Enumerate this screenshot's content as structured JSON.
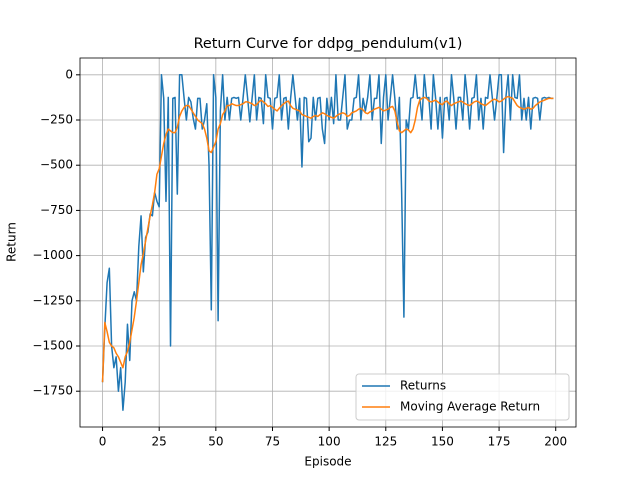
{
  "chart_data": {
    "type": "line",
    "title": "Return Curve for ddpg_pendulum(v1)",
    "xlabel": "Episode",
    "ylabel": "Return",
    "x": [
      0,
      1,
      2,
      3,
      4,
      5,
      6,
      7,
      8,
      9,
      10,
      11,
      12,
      13,
      14,
      15,
      16,
      17,
      18,
      19,
      20,
      21,
      22,
      23,
      24,
      25,
      26,
      27,
      28,
      29,
      30,
      31,
      32,
      33,
      34,
      35,
      36,
      37,
      38,
      39,
      40,
      41,
      42,
      43,
      44,
      45,
      46,
      47,
      48,
      49,
      50,
      51,
      52,
      53,
      54,
      55,
      56,
      57,
      58,
      59,
      60,
      61,
      62,
      63,
      64,
      65,
      66,
      67,
      68,
      69,
      70,
      71,
      72,
      73,
      74,
      75,
      76,
      77,
      78,
      79,
      80,
      81,
      82,
      83,
      84,
      85,
      86,
      87,
      88,
      89,
      90,
      91,
      92,
      93,
      94,
      95,
      96,
      97,
      98,
      99,
      100,
      101,
      102,
      103,
      104,
      105,
      106,
      107,
      108,
      109,
      110,
      111,
      112,
      113,
      114,
      115,
      116,
      117,
      118,
      119,
      120,
      121,
      122,
      123,
      124,
      125,
      126,
      127,
      128,
      129,
      130,
      131,
      132,
      133,
      134,
      135,
      136,
      137,
      138,
      139,
      140,
      141,
      142,
      143,
      144,
      145,
      146,
      147,
      148,
      149,
      150,
      151,
      152,
      153,
      154,
      155,
      156,
      157,
      158,
      159,
      160,
      161,
      162,
      163,
      164,
      165,
      166,
      167,
      168,
      169,
      170,
      171,
      172,
      173,
      174,
      175,
      176,
      177,
      178,
      179,
      180,
      181,
      182,
      183,
      184,
      185,
      186,
      187,
      188,
      189,
      190,
      191,
      192,
      193,
      194,
      195,
      196,
      197,
      198,
      199
    ],
    "series": [
      {
        "name": "Returns",
        "color": "#1f77b4",
        "values": [
          -1700,
          -1400,
          -1150,
          -1070,
          -1500,
          -1620,
          -1560,
          -1750,
          -1620,
          -1855,
          -1700,
          -1380,
          -1580,
          -1250,
          -1200,
          -1250,
          -950,
          -780,
          -1090,
          -900,
          -870,
          -770,
          -780,
          -650,
          -700,
          -730,
          0,
          -130,
          -700,
          -125,
          -1500,
          -130,
          -125,
          -660,
          0,
          0,
          -130,
          -250,
          -125,
          -150,
          -240,
          -300,
          -130,
          -130,
          -300,
          -250,
          -160,
          -500,
          -1300,
          0,
          -125,
          -1360,
          -200,
          0,
          -250,
          -125,
          -250,
          -130,
          -125,
          -130,
          -125,
          -250,
          -130,
          0,
          -125,
          -260,
          -130,
          0,
          -250,
          -125,
          -130,
          -270,
          0,
          -125,
          -130,
          -300,
          -130,
          -125,
          0,
          -250,
          -130,
          -125,
          -300,
          -130,
          0,
          -125,
          -250,
          -130,
          -510,
          -125,
          -130,
          -370,
          -350,
          -125,
          -250,
          -130,
          -125,
          -300,
          -380,
          -130,
          -250,
          -125,
          -270,
          0,
          -250,
          -250,
          -125,
          0,
          -300,
          -250,
          -250,
          -130,
          -125,
          0,
          -250,
          -130,
          -200,
          -125,
          0,
          -250,
          -130,
          -130,
          0,
          -380,
          -125,
          0,
          -250,
          -130,
          0,
          -130,
          -300,
          -125,
          -650,
          -1340,
          -250,
          -300,
          -130,
          -125,
          0,
          -130,
          -125,
          -250,
          0,
          -130,
          -125,
          -300,
          0,
          -130,
          -300,
          -125,
          -350,
          -130,
          -125,
          -250,
          0,
          -130,
          -300,
          -125,
          -125,
          -250,
          0,
          -125,
          -300,
          -130,
          -125,
          0,
          -250,
          -130,
          -300,
          -125,
          -130,
          0,
          -125,
          -250,
          -130,
          0,
          0,
          -430,
          -125,
          0,
          -250,
          0,
          -125,
          -130,
          0,
          -250,
          -130,
          -250,
          -125,
          -300,
          -130,
          -125,
          -130,
          -250,
          -130,
          -125,
          -130,
          -125,
          -130,
          -130
        ]
      },
      {
        "name": "Moving Average Return",
        "color": "#ff7f0e",
        "values": [
          -1700,
          -1370,
          -1420,
          -1480,
          -1500,
          -1510,
          -1540,
          -1560,
          -1590,
          -1620,
          -1560,
          -1530,
          -1480,
          -1410,
          -1340,
          -1250,
          -1150,
          -1050,
          -990,
          -920,
          -850,
          -780,
          -720,
          -650,
          -550,
          -520,
          -450,
          -380,
          -330,
          -300,
          -310,
          -320,
          -320,
          -290,
          -230,
          -200,
          -180,
          -170,
          -170,
          -190,
          -210,
          -230,
          -250,
          -260,
          -270,
          -300,
          -350,
          -420,
          -430,
          -400,
          -370,
          -300,
          -270,
          -220,
          -200,
          -170,
          -170,
          -160,
          -165,
          -170,
          -170,
          -165,
          -160,
          -150,
          -150,
          -155,
          -160,
          -170,
          -165,
          -150,
          -140,
          -150,
          -160,
          -175,
          -170,
          -180,
          -190,
          -200,
          -185,
          -170,
          -160,
          -150,
          -145,
          -170,
          -185,
          -190,
          -195,
          -200,
          -220,
          -225,
          -230,
          -235,
          -240,
          -230,
          -225,
          -230,
          -220,
          -210,
          -215,
          -225,
          -230,
          -235,
          -240,
          -230,
          -220,
          -215,
          -210,
          -215,
          -230,
          -225,
          -210,
          -205,
          -200,
          -190,
          -185,
          -195,
          -210,
          -215,
          -205,
          -200,
          -190,
          -185,
          -180,
          -190,
          -200,
          -195,
          -190,
          -180,
          -175,
          -200,
          -260,
          -310,
          -320,
          -310,
          -300,
          -305,
          -320,
          -300,
          -250,
          -180,
          -140,
          -130,
          -125,
          -130,
          -145,
          -150,
          -145,
          -140,
          -150,
          -160,
          -165,
          -150,
          -145,
          -160,
          -170,
          -160,
          -155,
          -150,
          -145,
          -150,
          -160,
          -165,
          -170,
          -160,
          -150,
          -145,
          -150,
          -160,
          -165,
          -170,
          -160,
          -150,
          -140,
          -135,
          -140,
          -150,
          -145,
          -135,
          -125,
          -120,
          -125,
          -130,
          -150,
          -170,
          -180,
          -185,
          -190,
          -185,
          -180,
          -190,
          -185,
          -170,
          -160,
          -150,
          -145,
          -140,
          -135,
          -130,
          -130,
          -130
        ]
      }
    ],
    "xlim": [
      -9.95,
      208.95
    ],
    "ylim": [
      -1948,
      93
    ],
    "xticks": [
      0,
      25,
      50,
      75,
      100,
      125,
      150,
      175,
      200
    ],
    "yticks": [
      {
        "value": -1750,
        "label": "−1750"
      },
      {
        "value": -1500,
        "label": "−1500"
      },
      {
        "value": -1250,
        "label": "−1250"
      },
      {
        "value": -1000,
        "label": "−1000"
      },
      {
        "value": -750,
        "label": "−750"
      },
      {
        "value": -500,
        "label": "−500"
      },
      {
        "value": -250,
        "label": "−250"
      },
      0
    ],
    "grid": true,
    "legend": "lower right"
  }
}
